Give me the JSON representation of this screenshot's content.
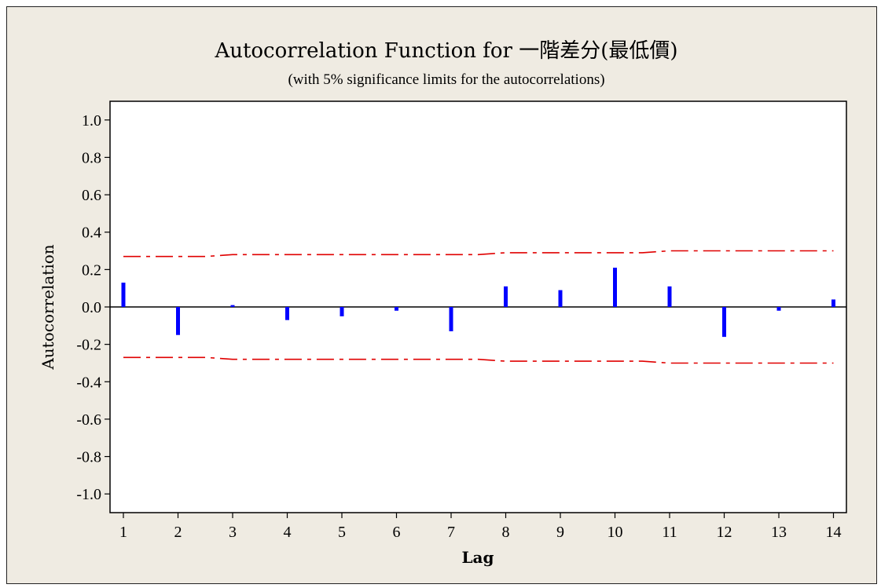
{
  "chart_data": {
    "type": "bar",
    "title": "Autocorrelation Function for 一階差分(最低價)",
    "subtitle": "(with 5% significance limits for the autocorrelations)",
    "xlabel": "Lag",
    "ylabel": "Autocorrelation",
    "ylim": [
      -1.1,
      1.1
    ],
    "x": [
      1,
      2,
      3,
      4,
      5,
      6,
      7,
      8,
      9,
      10,
      11,
      12,
      13,
      14
    ],
    "y_ticks": [
      "1.0",
      "0.8",
      "0.6",
      "0.4",
      "0.2",
      "0.0",
      "-0.2",
      "-0.4",
      "-0.6",
      "-0.8",
      "-1.0"
    ],
    "series": [
      {
        "name": "",
        "values": [
          0.13,
          -0.15,
          0.01,
          -0.07,
          -0.05,
          -0.02,
          -0.13,
          0.11,
          0.09,
          0.21,
          0.11,
          -0.16,
          -0.02,
          0.04
        ]
      }
    ],
    "upper_limit": [
      0.27,
      0.27,
      0.28,
      0.28,
      0.28,
      0.28,
      0.28,
      0.29,
      0.29,
      0.29,
      0.3,
      0.3,
      0.3,
      0.3
    ],
    "lower_limit": [
      -0.27,
      -0.27,
      -0.28,
      -0.28,
      -0.28,
      -0.28,
      -0.28,
      -0.29,
      -0.29,
      -0.29,
      -0.3,
      -0.3,
      -0.3,
      -0.3
    ],
    "colors": {
      "bars": "#0000ff",
      "limits": "#e00000",
      "background": "#efebe2"
    },
    "grid": false
  }
}
